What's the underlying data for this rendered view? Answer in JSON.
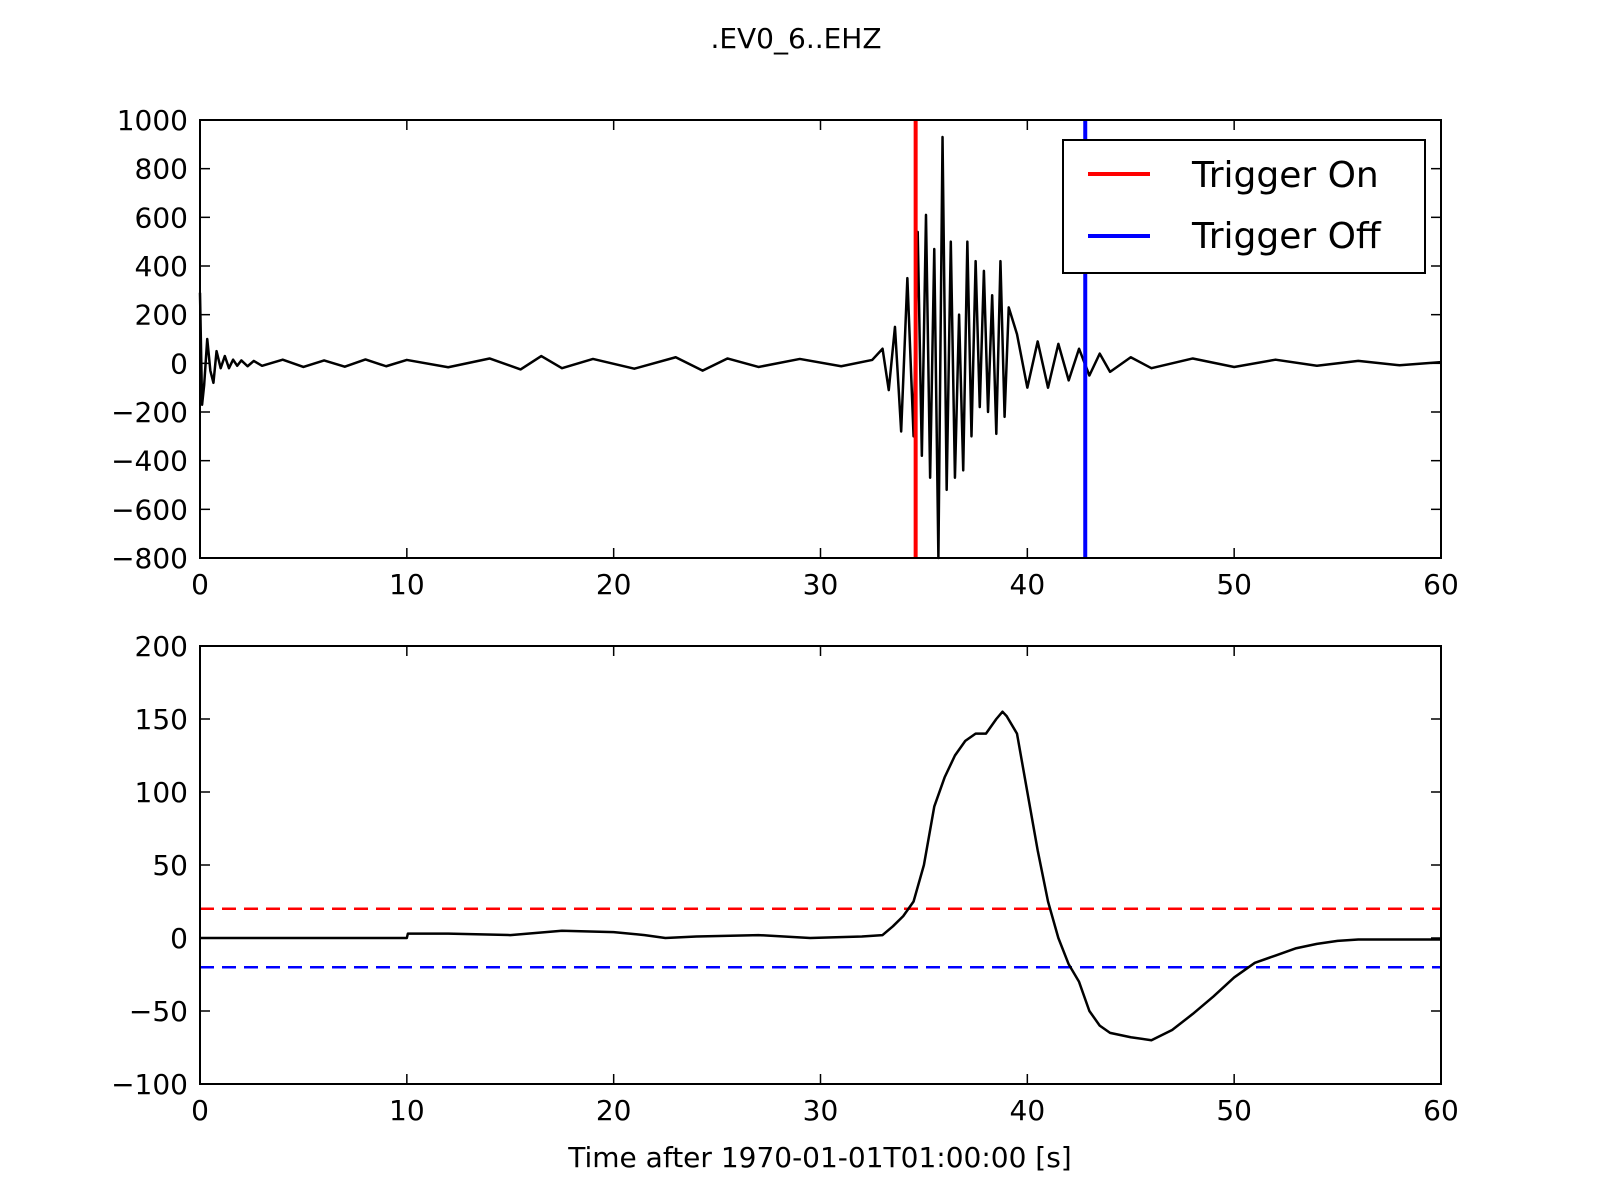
{
  "chart_data": [
    {
      "type": "line",
      "title": ".EV0_6..EHZ",
      "xlabel": "",
      "ylabel": "",
      "xlim": [
        0,
        60
      ],
      "ylim": [
        -800,
        1000
      ],
      "xticks": [
        0,
        10,
        20,
        30,
        40,
        50,
        60
      ],
      "yticks": [
        -800,
        -600,
        -400,
        -200,
        0,
        200,
        400,
        600,
        800,
        1000
      ],
      "xtick_labels": [
        "0",
        "10",
        "20",
        "30",
        "40",
        "50",
        "60"
      ],
      "ytick_labels": [
        "−800",
        "−600",
        "−400",
        "−200",
        "0",
        "200",
        "400",
        "600",
        "800",
        "1000"
      ],
      "grid": false,
      "legend": "top-right",
      "series": [
        {
          "color": "#000000",
          "x": [
            0.0,
            0.1,
            0.2,
            0.35,
            0.5,
            0.65,
            0.8,
            1.0,
            1.2,
            1.4,
            1.6,
            1.8,
            2.0,
            2.3,
            2.6,
            3.0,
            4.0,
            5.0,
            6.0,
            7.0,
            8.0,
            9.0,
            10.0,
            12.0,
            14.0,
            15.5,
            16.5,
            17.5,
            19.0,
            21.0,
            23.0,
            24.3,
            25.5,
            27.0,
            29.0,
            31.0,
            32.5,
            33.0,
            33.3,
            33.6,
            33.9,
            34.2,
            34.5,
            34.7,
            34.9,
            35.1,
            35.3,
            35.5,
            35.7,
            35.9,
            36.1,
            36.3,
            36.5,
            36.7,
            36.9,
            37.1,
            37.3,
            37.5,
            37.7,
            37.9,
            38.1,
            38.3,
            38.5,
            38.7,
            38.9,
            39.1,
            39.5,
            40.0,
            40.5,
            41.0,
            41.5,
            42.0,
            42.5,
            43.0,
            43.5,
            44.0,
            45.0,
            46.0,
            48.0,
            50.0,
            52.0,
            54.0,
            56.0,
            58.0,
            60.0
          ],
          "values": [
            290,
            -170,
            -90,
            100,
            -30,
            -80,
            50,
            -20,
            30,
            -20,
            15,
            -10,
            12,
            -12,
            10,
            -10,
            15,
            -15,
            12,
            -14,
            16,
            -12,
            14,
            -16,
            20,
            -25,
            30,
            -20,
            18,
            -22,
            25,
            -30,
            20,
            -15,
            18,
            -12,
            14,
            60,
            -110,
            150,
            -280,
            350,
            -300,
            540,
            -380,
            610,
            -470,
            470,
            -800,
            930,
            -520,
            500,
            -470,
            200,
            -440,
            500,
            -300,
            420,
            -180,
            380,
            -200,
            280,
            -290,
            420,
            -220,
            230,
            120,
            -100,
            90,
            -100,
            80,
            -70,
            60,
            -50,
            40,
            -35,
            25,
            -20,
            20,
            -15,
            15,
            -10,
            10,
            -8,
            5
          ]
        }
      ],
      "vlines": [
        {
          "name": "Trigger On",
          "x": 34.6,
          "color": "#ff0000"
        },
        {
          "name": "Trigger Off",
          "x": 42.8,
          "color": "#0000ff"
        }
      ]
    },
    {
      "type": "line",
      "title": "",
      "xlabel": "Time after 1970-01-01T01:00:00 [s]",
      "ylabel": "",
      "xlim": [
        0,
        60
      ],
      "ylim": [
        -100,
        200
      ],
      "xticks": [
        0,
        10,
        20,
        30,
        40,
        50,
        60
      ],
      "yticks": [
        -100,
        -50,
        0,
        50,
        100,
        150,
        200
      ],
      "xtick_labels": [
        "0",
        "10",
        "20",
        "30",
        "40",
        "50",
        "60"
      ],
      "ytick_labels": [
        "−100",
        "−50",
        "0",
        "50",
        "100",
        "150",
        "200"
      ],
      "grid": false,
      "legend": "none",
      "series": [
        {
          "color": "#000000",
          "x": [
            0,
            10.0,
            10.05,
            12,
            15,
            17.5,
            20,
            21.5,
            22.5,
            24,
            27,
            29.5,
            32,
            33,
            33.5,
            34,
            34.5,
            35,
            35.5,
            36,
            36.5,
            37,
            37.5,
            38.0,
            38.5,
            38.8,
            39,
            39.5,
            40,
            40.5,
            41,
            41.5,
            42,
            42.5,
            43,
            43.5,
            44,
            45,
            46,
            47,
            48,
            49,
            50,
            51,
            52,
            53,
            54,
            55,
            56,
            58,
            60
          ],
          "values": [
            0,
            0,
            3,
            3,
            2,
            5,
            4,
            2,
            0,
            1,
            2,
            0,
            1,
            2,
            8,
            15,
            25,
            50,
            90,
            110,
            125,
            135,
            140,
            140,
            150,
            155,
            152,
            140,
            100,
            60,
            25,
            0,
            -18,
            -30,
            -50,
            -60,
            -65,
            -68,
            -70,
            -63,
            -52,
            -40,
            -27,
            -17,
            -12,
            -7,
            -4,
            -2,
            -1,
            -1,
            -1
          ]
        }
      ],
      "hlines": [
        {
          "y": 20,
          "color": "#ff0000",
          "style": "dashed"
        },
        {
          "y": -20,
          "color": "#0000ff",
          "style": "dashed"
        }
      ]
    }
  ],
  "legend": {
    "entries": [
      {
        "label": "Trigger On",
        "color": "#ff0000"
      },
      {
        "label": "Trigger Off",
        "color": "#0000ff"
      }
    ]
  }
}
